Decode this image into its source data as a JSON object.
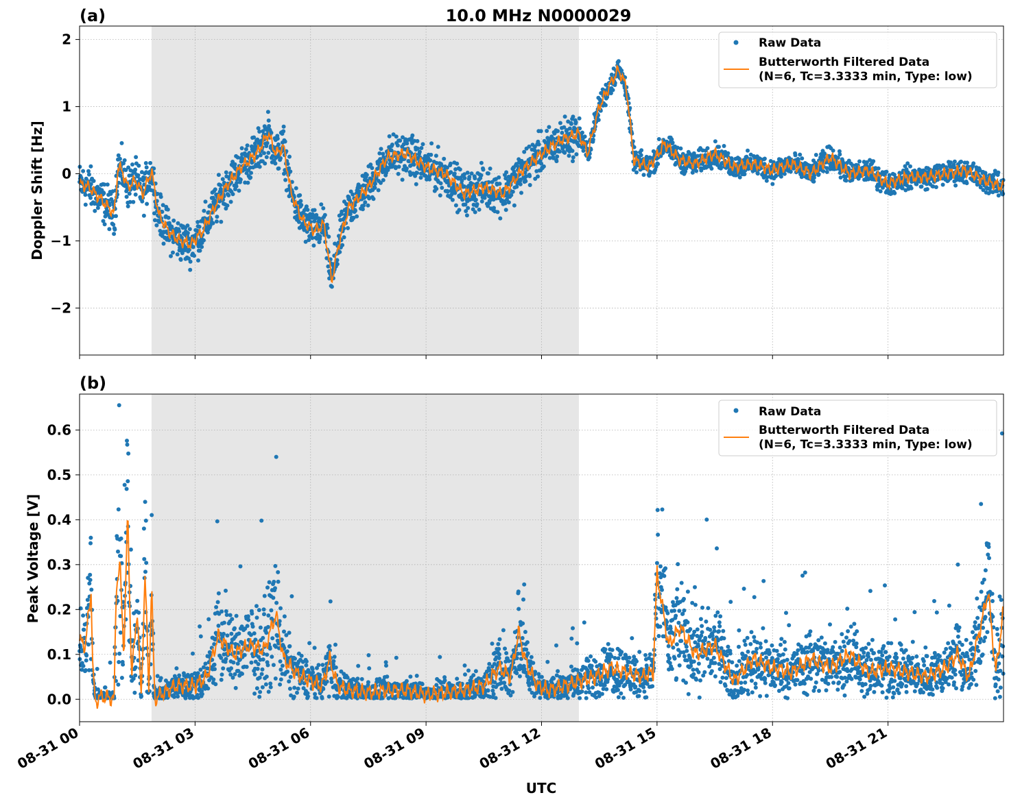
{
  "figure": {
    "title": "10.0 MHz N0000029",
    "xlabel": "UTC",
    "x_ticks": [
      "08-31 00",
      "08-31 03",
      "08-31 06",
      "08-31 09",
      "08-31 12",
      "08-31 15",
      "08-31 18",
      "08-31 21"
    ]
  },
  "colors": {
    "raw": "#1f77b4",
    "filtered": "#ff7f0e",
    "shade": "#e6e6e6"
  },
  "chart_data": [
    {
      "type": "scatter",
      "panel_label": "(a)",
      "ylabel": "Doppler Shift [Hz]",
      "xlim_hours": [
        0,
        24
      ],
      "ylim": [
        -2.7,
        2.2
      ],
      "y_ticks": [
        2,
        1,
        0,
        -1,
        -2
      ],
      "y_tick_labels": [
        "2",
        "1",
        "0",
        "−1",
        "−2"
      ],
      "shaded_region_hours": [
        1.87,
        12.97
      ],
      "grid": true,
      "legend_placement": "top-right",
      "legend": {
        "raw": "Raw Data",
        "filtered_line1": "Butterworth Filtered Data",
        "filtered_line2": "(N=6, Tc=3.3333 min, Type: low)"
      },
      "series": [
        {
          "name": "Raw Data",
          "kind": "scatter",
          "spread_hz": 0.25
        },
        {
          "name": "Butterworth Filtered Data",
          "kind": "line",
          "x_hours": [
            0,
            0.25,
            0.5,
            0.75,
            0.9,
            1.0,
            1.1,
            1.25,
            1.45,
            1.65,
            1.87,
            2.05,
            2.3,
            2.6,
            2.9,
            3.2,
            3.5,
            3.8,
            4.2,
            4.6,
            4.9,
            5.1,
            5.3,
            5.5,
            5.8,
            6.1,
            6.35,
            6.55,
            6.75,
            7.0,
            7.5,
            8.0,
            8.5,
            9.0,
            9.5,
            10.0,
            10.5,
            11.0,
            11.5,
            12.0,
            12.5,
            12.97,
            13.2,
            13.5,
            13.8,
            14.0,
            14.2,
            14.4,
            14.8,
            15.2,
            15.6,
            16.0,
            16.5,
            17.0,
            17.5,
            18.0,
            18.5,
            19.0,
            19.5,
            20.0,
            20.5,
            21.0,
            21.5,
            22.0,
            22.5,
            23.0,
            23.5,
            24.0
          ],
          "y_hz": [
            -0.15,
            -0.2,
            -0.35,
            -0.5,
            -0.6,
            0.1,
            0.05,
            -0.2,
            -0.1,
            -0.3,
            0.05,
            -0.6,
            -0.85,
            -1.0,
            -1.05,
            -0.85,
            -0.5,
            -0.2,
            0.1,
            0.3,
            0.6,
            0.3,
            0.4,
            -0.3,
            -0.7,
            -0.85,
            -0.75,
            -1.6,
            -1.0,
            -0.5,
            -0.2,
            0.25,
            0.3,
            0.1,
            0.0,
            -0.3,
            -0.2,
            -0.3,
            0.05,
            0.3,
            0.5,
            0.6,
            0.3,
            1.0,
            1.35,
            1.55,
            1.3,
            0.2,
            0.1,
            0.45,
            0.2,
            0.15,
            0.3,
            0.1,
            0.15,
            0.05,
            0.15,
            0.0,
            0.25,
            0.0,
            0.05,
            -0.15,
            -0.05,
            -0.05,
            0.0,
            0.05,
            -0.1,
            -0.2
          ]
        }
      ]
    },
    {
      "type": "scatter",
      "panel_label": "(b)",
      "ylabel": "Peak Voltage [V]",
      "xlim_hours": [
        0,
        24
      ],
      "ylim": [
        -0.05,
        0.68
      ],
      "y_ticks": [
        0.6,
        0.5,
        0.4,
        0.3,
        0.2,
        0.1,
        0.0
      ],
      "y_tick_labels": [
        "0.6",
        "0.5",
        "0.4",
        "0.3",
        "0.2",
        "0.1",
        "0.0"
      ],
      "shaded_region_hours": [
        1.87,
        12.97
      ],
      "grid": true,
      "legend_placement": "top-right",
      "legend": {
        "raw": "Raw Data",
        "filtered_line1": "Butterworth Filtered Data",
        "filtered_line2": "(N=6, Tc=3.3333 min, Type: low)"
      },
      "series": [
        {
          "name": "Raw Data",
          "kind": "scatter",
          "spread_v": 0.06
        },
        {
          "name": "Butterworth Filtered Data",
          "kind": "line",
          "x_hours": [
            0,
            0.15,
            0.3,
            0.35,
            0.42,
            0.5,
            0.7,
            0.9,
            0.95,
            1.05,
            1.15,
            1.25,
            1.35,
            1.5,
            1.6,
            1.7,
            1.8,
            1.87,
            1.95,
            2.1,
            2.5,
            3.0,
            3.3,
            3.6,
            4.0,
            4.4,
            4.8,
            5.1,
            5.3,
            5.6,
            6.0,
            6.3,
            6.5,
            6.7,
            7.0,
            7.5,
            8.0,
            8.5,
            9.0,
            9.5,
            10.0,
            10.5,
            10.9,
            11.2,
            11.4,
            11.6,
            11.9,
            12.2,
            12.6,
            12.97,
            13.4,
            13.8,
            14.2,
            14.6,
            14.9,
            15.0,
            15.3,
            15.6,
            16.0,
            16.5,
            17.0,
            17.5,
            18.0,
            18.5,
            19.0,
            19.5,
            20.0,
            20.5,
            21.0,
            21.5,
            22.0,
            22.5,
            22.8,
            23.1,
            23.4,
            23.6,
            23.8,
            24.0
          ],
          "y_v": [
            0.13,
            0.12,
            0.24,
            0.05,
            -0.01,
            0.005,
            0.005,
            0.0,
            0.25,
            0.3,
            0.1,
            0.42,
            0.05,
            0.2,
            0.0,
            0.28,
            0.02,
            0.26,
            0.0,
            0.01,
            0.03,
            0.03,
            0.05,
            0.14,
            0.1,
            0.12,
            0.11,
            0.19,
            0.09,
            0.06,
            0.04,
            0.03,
            0.09,
            0.03,
            0.02,
            0.015,
            0.02,
            0.02,
            0.01,
            0.015,
            0.02,
            0.03,
            0.07,
            0.05,
            0.15,
            0.08,
            0.03,
            0.02,
            0.03,
            0.04,
            0.05,
            0.07,
            0.06,
            0.05,
            0.06,
            0.28,
            0.12,
            0.16,
            0.1,
            0.12,
            0.04,
            0.09,
            0.07,
            0.06,
            0.09,
            0.07,
            0.1,
            0.06,
            0.07,
            0.06,
            0.05,
            0.07,
            0.1,
            0.05,
            0.16,
            0.24,
            0.06,
            0.2
          ]
        }
      ]
    }
  ]
}
